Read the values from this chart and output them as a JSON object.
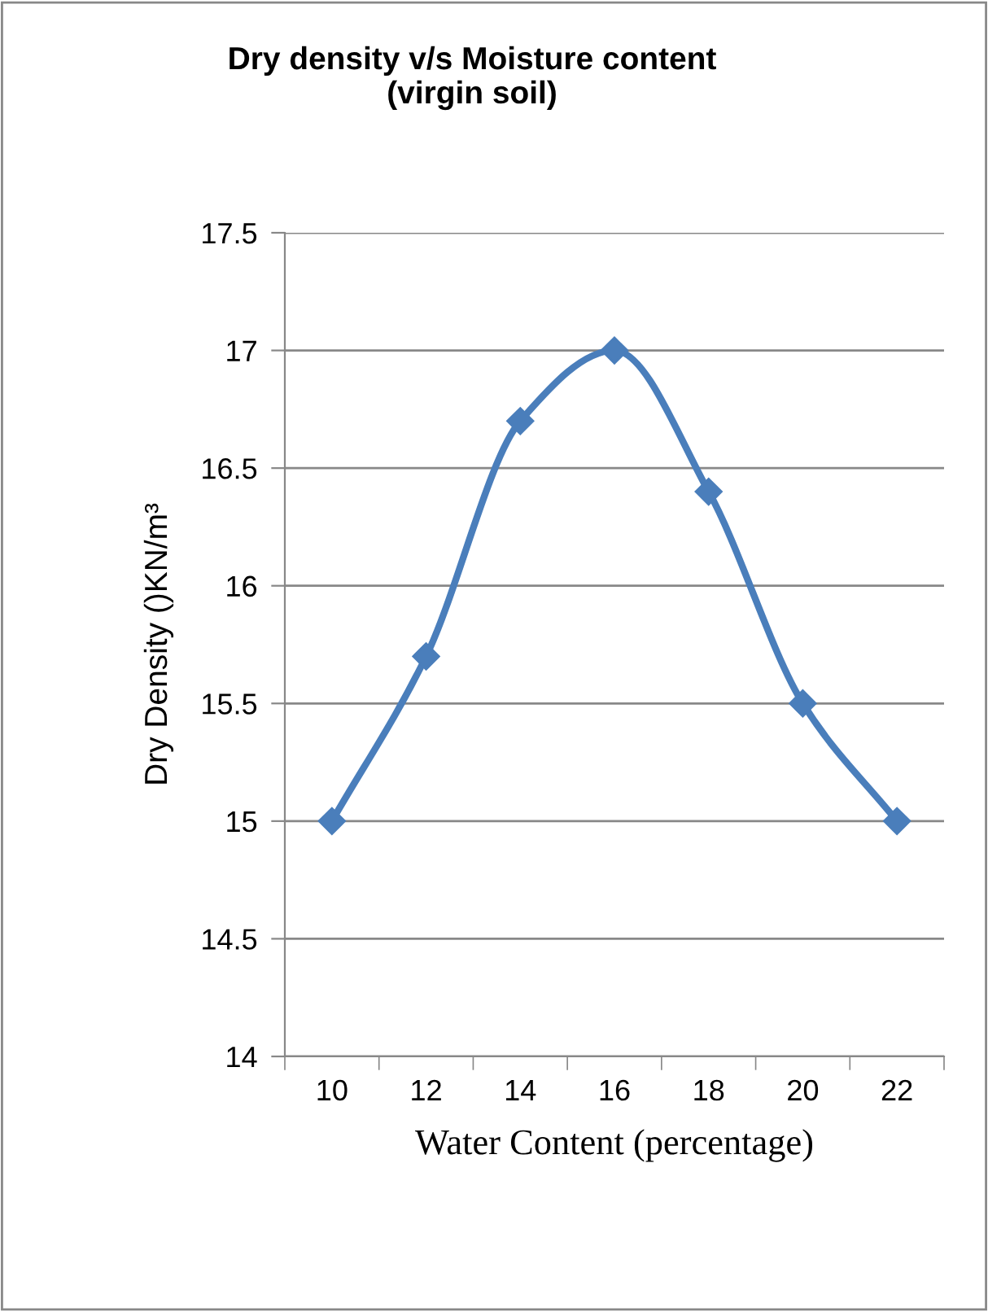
{
  "chart_data": {
    "type": "line",
    "title": "Dry density v/s Moisture content\n(virgin soil)",
    "xlabel": "Water Content (percentage)",
    "ylabel": "Dry Density ()KN/m³",
    "categories": [
      "10",
      "12",
      "14",
      "16",
      "18",
      "20",
      "22"
    ],
    "series": [
      {
        "color": "#4a7ebb",
        "values": [
          15,
          15.7,
          16.7,
          17,
          16.4,
          15.5,
          15
        ]
      }
    ],
    "ylim": [
      14,
      17.5
    ],
    "yticks": [
      14,
      14.5,
      15,
      15.5,
      16,
      16.5,
      17,
      17.5
    ],
    "grid": "y",
    "marker": "diamond",
    "line_style": "solid"
  }
}
